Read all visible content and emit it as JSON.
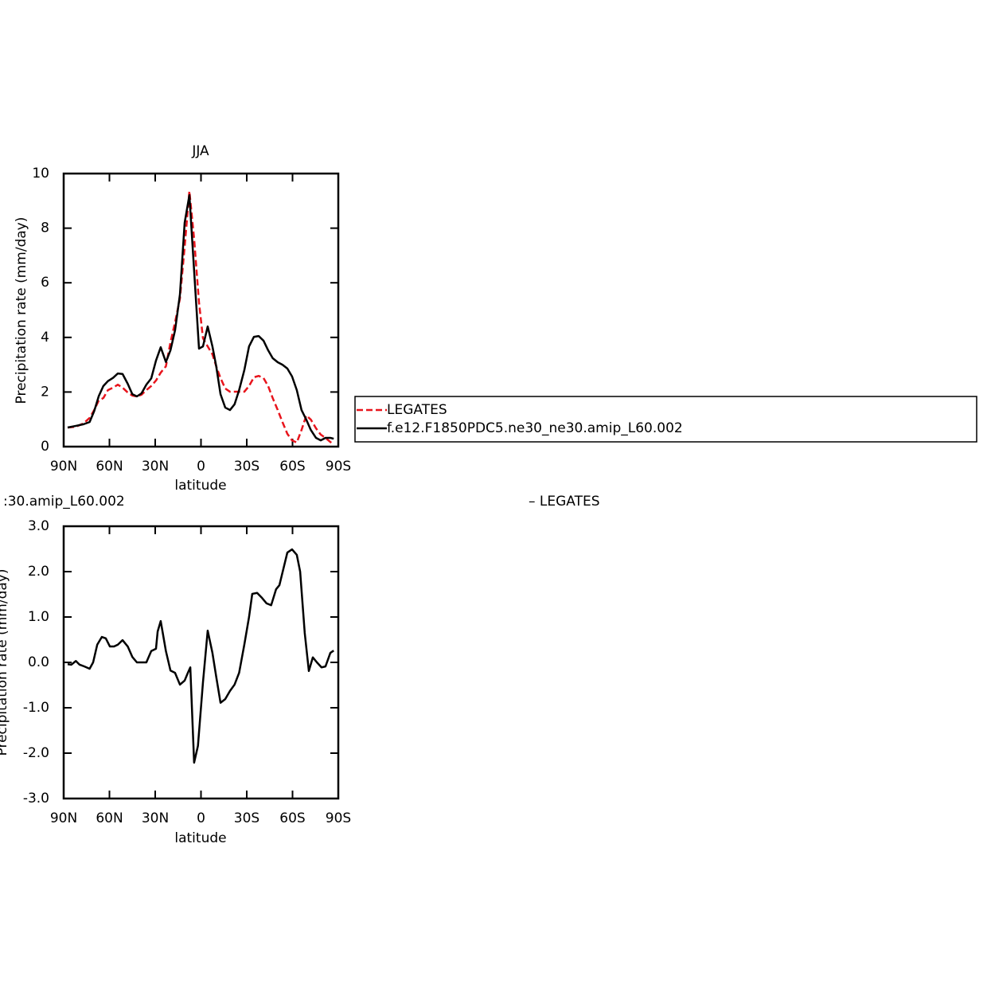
{
  "chart_data": [
    {
      "type": "line",
      "title": "JJA",
      "xlabel": "latitude",
      "ylabel": "Precipitation rate (mm/day)",
      "x": [
        87.4,
        82,
        77,
        73,
        70,
        67,
        64,
        61,
        57.6,
        54.5,
        51.4,
        48,
        45,
        42,
        39,
        35.8,
        32.6,
        29.5,
        26.4,
        23,
        20,
        17,
        13.8,
        10.7,
        7.6,
        4.5,
        1.3,
        -1.3,
        -4.4,
        -7.5,
        -10,
        -12.8,
        -15.9,
        -19,
        -22,
        -25,
        -28.4,
        -31.5,
        -34.7,
        -37.8,
        -41,
        -44,
        -47,
        -50.3,
        -53.4,
        -56.6,
        -59.7,
        -62.8,
        -65.9,
        -69,
        -72,
        -75.4,
        -78.5,
        -81.6,
        -84.8,
        -87
      ],
      "series": [
        {
          "name": "LEGATES",
          "color": "#e8141c",
          "line_style": "dashed",
          "values": [
            0.7,
            0.73,
            0.85,
            1.05,
            1.34,
            1.69,
            1.78,
            2.07,
            2.16,
            2.27,
            2.16,
            1.98,
            1.87,
            1.84,
            1.9,
            2.07,
            2.22,
            2.42,
            2.71,
            2.94,
            3.82,
            4.55,
            5.42,
            7.32,
            9.36,
            7.61,
            5.28,
            3.97,
            3.67,
            3.38,
            2.94,
            2.51,
            2.13,
            2.01,
            2.01,
            2.01,
            2.01,
            2.22,
            2.54,
            2.59,
            2.51,
            2.22,
            1.78,
            1.34,
            0.9,
            0.47,
            0.23,
            0.15,
            0.61,
            1.14,
            0.99,
            0.67,
            0.44,
            0.32,
            0.17,
            0.09
          ]
        },
        {
          "name": "f.e12.F1850PDC5.ne30_ne30.amip_L60.002",
          "color": "#000000",
          "line_style": "solid",
          "values": [
            0.7,
            0.76,
            0.82,
            0.9,
            1.3,
            1.85,
            2.22,
            2.4,
            2.52,
            2.68,
            2.66,
            2.3,
            1.92,
            1.84,
            1.95,
            2.27,
            2.5,
            3.15,
            3.64,
            3.1,
            3.53,
            4.26,
            5.57,
            8.2,
            9.21,
            6.44,
            3.59,
            3.67,
            4.4,
            3.67,
            2.94,
            1.92,
            1.43,
            1.34,
            1.55,
            2.07,
            2.8,
            3.67,
            4.02,
            4.05,
            3.88,
            3.53,
            3.24,
            3.09,
            3.0,
            2.86,
            2.57,
            2.07,
            1.34,
            0.99,
            0.61,
            0.32,
            0.23,
            0.32,
            0.32,
            0.29
          ]
        }
      ],
      "xlim": [
        90,
        -90
      ],
      "xticks": [
        {
          "value": 90,
          "label": "90N"
        },
        {
          "value": 60,
          "label": "60N"
        },
        {
          "value": 30,
          "label": "30N"
        },
        0,
        {
          "value": -30,
          "label": "30S"
        },
        {
          "value": -60,
          "label": "60S"
        },
        {
          "value": -90,
          "label": "90S"
        }
      ],
      "ylim": [
        0,
        10
      ],
      "yticks": [
        0,
        2,
        4,
        6,
        8,
        10
      ],
      "legend": "right"
    },
    {
      "type": "line",
      "title_left": ":30.amip_L60.002",
      "title_right": "– LEGATES",
      "xlabel": "latitude",
      "ylabel": "Precipitation rate (mm/day)",
      "x": [
        87.4,
        85,
        82,
        79.6,
        76.4,
        73,
        70.7,
        68,
        65,
        62.4,
        59.7,
        57,
        54.5,
        51.4,
        48,
        45,
        42,
        39,
        35.8,
        32.6,
        29.5,
        28.4,
        26.4,
        23,
        20,
        17,
        13.8,
        10.7,
        8.6,
        7.0,
        4.5,
        2,
        -1.3,
        -4.4,
        -7.5,
        -10,
        -12.8,
        -15.9,
        -19,
        -22,
        -25,
        -28.4,
        -31.5,
        -33.6,
        -36.8,
        -40,
        -43,
        -46,
        -49.2,
        -51.4,
        -56.6,
        -59.7,
        -62.8,
        -65,
        -68,
        -70.7,
        -73.3,
        -76,
        -79,
        -81.6,
        -84.8,
        -87
      ],
      "series": [
        {
          "color": "#000000",
          "line_style": "solid",
          "values": [
            -0.04,
            -0.05,
            0.03,
            -0.05,
            -0.09,
            -0.14,
            0,
            0.39,
            0.56,
            0.53,
            0.35,
            0.35,
            0.39,
            0.49,
            0.35,
            0.12,
            0,
            0,
            0,
            0.25,
            0.3,
            0.68,
            0.91,
            0.25,
            -0.18,
            -0.23,
            -0.49,
            -0.4,
            -0.23,
            -0.11,
            -2.21,
            -1.84,
            -0.44,
            0.7,
            0.21,
            -0.32,
            -0.89,
            -0.81,
            -0.63,
            -0.49,
            -0.23,
            0.39,
            1.0,
            1.51,
            1.53,
            1.42,
            1.3,
            1.26,
            1.61,
            1.7,
            2.42,
            2.49,
            2.37,
            2.0,
            0.65,
            -0.19,
            0.11,
            0,
            -0.11,
            -0.09,
            0.21,
            0.26
          ]
        }
      ],
      "xlim": [
        90,
        -90
      ],
      "xticks": [
        {
          "value": 90,
          "label": "90N"
        },
        {
          "value": 60,
          "label": "60N"
        },
        {
          "value": 30,
          "label": "30N"
        },
        0,
        {
          "value": -30,
          "label": "30S"
        },
        {
          "value": -60,
          "label": "60S"
        },
        {
          "value": -90,
          "label": "90S"
        }
      ],
      "ylim": [
        -3,
        3
      ],
      "yticks": [
        {
          "value": -3,
          "label": "-3.0"
        },
        {
          "value": -2,
          "label": "-2.0"
        },
        {
          "value": -1,
          "label": "-1.0"
        },
        {
          "value": 0,
          "label": "0.0"
        },
        {
          "value": 1,
          "label": "1.0"
        },
        {
          "value": 2,
          "label": "2.0"
        },
        {
          "value": 3,
          "label": "3.0"
        }
      ]
    }
  ]
}
